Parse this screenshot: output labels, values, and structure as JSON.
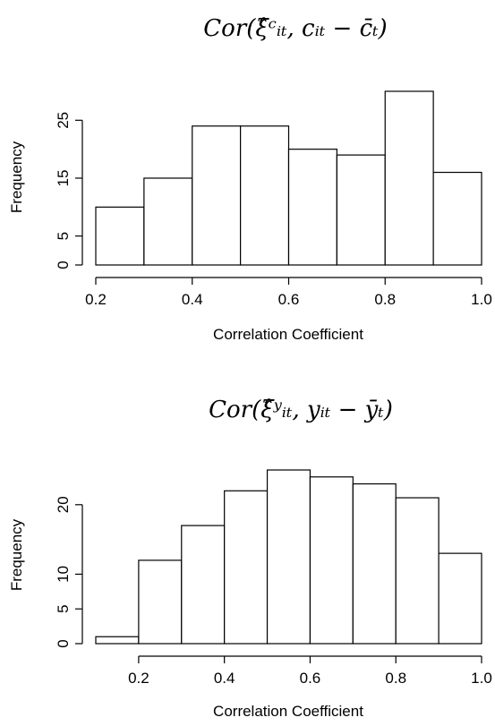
{
  "chart_data": [
    {
      "type": "bar",
      "title": "Cor(ξ̂ᶜᵢₜ, cᵢₜ − c̄ₜ)",
      "xlabel": "Correlation Coefficient",
      "ylabel": "Frequency",
      "bin_edges": [
        0.2,
        0.3,
        0.4,
        0.5,
        0.6,
        0.7,
        0.8,
        0.9,
        1.0
      ],
      "values": [
        10,
        15,
        24,
        24,
        20,
        19,
        30,
        16
      ],
      "xlim": [
        0.2,
        1.0
      ],
      "ylim": [
        0,
        30
      ],
      "xticks": [
        "0.2",
        "0.4",
        "0.6",
        "0.8",
        "1.0"
      ],
      "yticks": [
        "0",
        "5",
        "15",
        "25"
      ],
      "grid": false
    },
    {
      "type": "bar",
      "title": "Cor(ξ̂ʸᵢₜ, yᵢₜ − ȳₜ)",
      "xlabel": "Correlation Coefficient",
      "ylabel": "Frequency",
      "bin_edges": [
        0.1,
        0.2,
        0.3,
        0.4,
        0.5,
        0.6,
        0.7,
        0.8,
        0.9,
        1.0
      ],
      "values": [
        1,
        12,
        17,
        22,
        25,
        24,
        23,
        21,
        13
      ],
      "xlim": [
        0.1,
        1.0
      ],
      "ylim": [
        0,
        25
      ],
      "xticks": [
        "0.2",
        "0.4",
        "0.6",
        "0.8",
        "1.0"
      ],
      "yticks": [
        "0",
        "5",
        "10",
        "20"
      ],
      "grid": false
    }
  ]
}
